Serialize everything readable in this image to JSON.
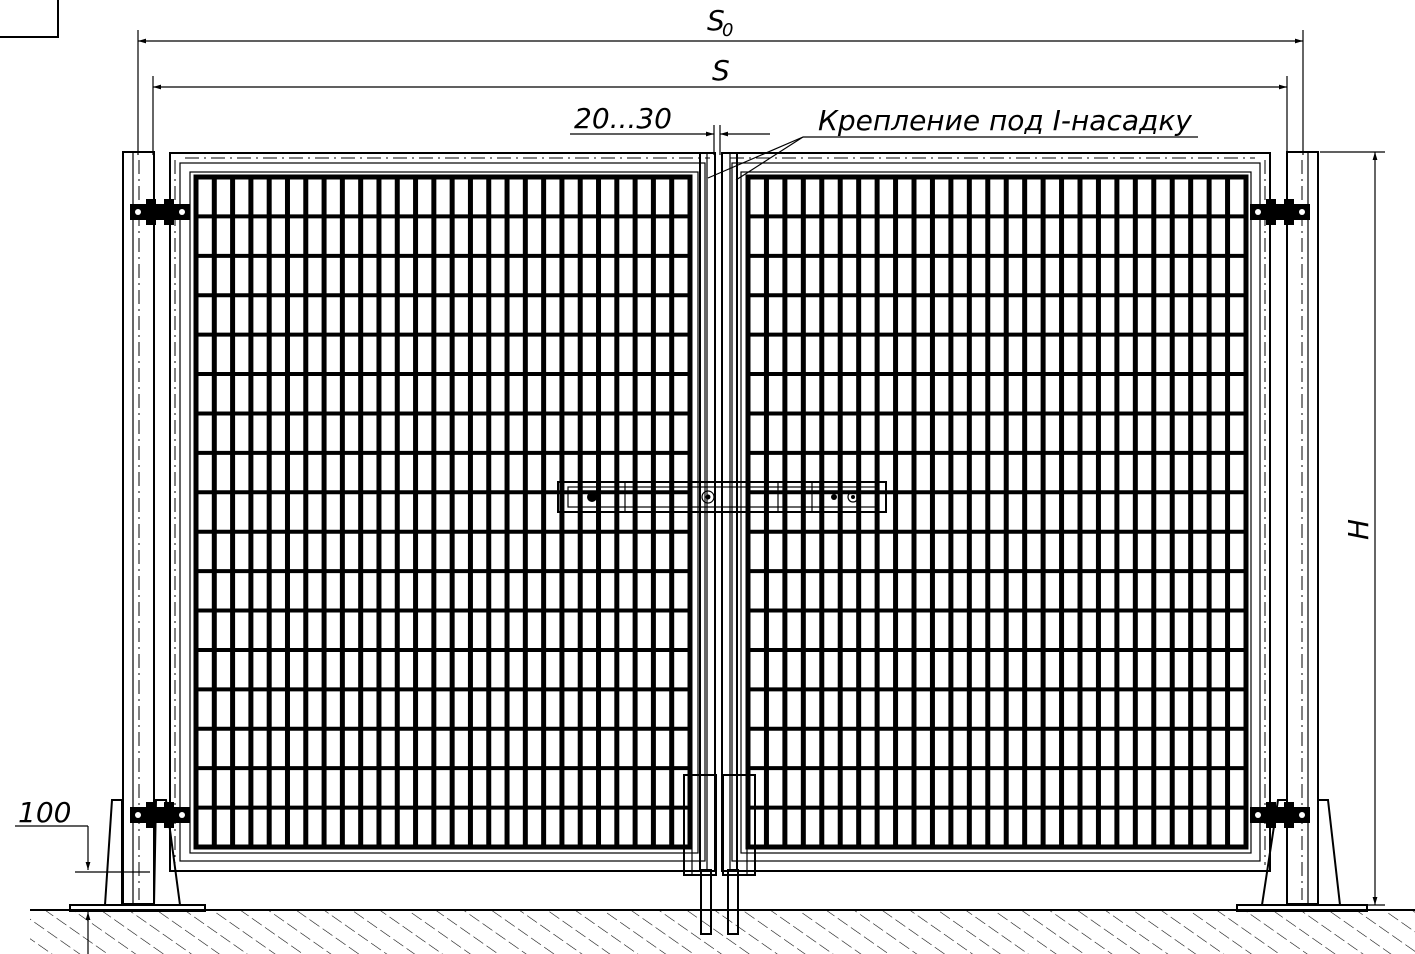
{
  "drawing": {
    "dimensions": {
      "s0_label": "S",
      "s0_subscript": "0",
      "s_label": "S",
      "h_label": "H",
      "gap_label": "20...30",
      "base_label": "100"
    },
    "callout": {
      "text": "Крепление под I-насадку"
    }
  }
}
